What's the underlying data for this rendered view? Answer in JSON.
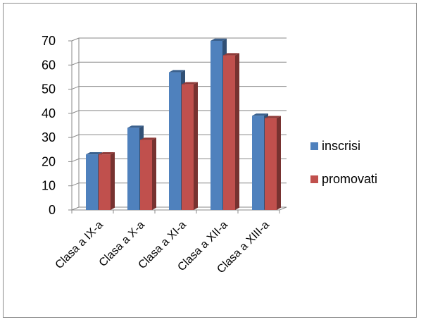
{
  "chart_data": {
    "type": "bar",
    "style": "3d-clustered-column",
    "categories": [
      "Clasa a IX-a",
      "Clasa a X-a",
      "Clasa a XI-a",
      "Clasa a XII-a",
      "Clasa a XIII-a"
    ],
    "series": [
      {
        "name": "inscrisi",
        "color": "#4f81bd",
        "values": [
          23,
          34,
          57,
          70,
          39
        ]
      },
      {
        "name": "promovati",
        "color": "#c0504d",
        "values": [
          23,
          29,
          52,
          64,
          38
        ]
      }
    ],
    "ylim": [
      0,
      70
    ],
    "yticks": [
      0,
      10,
      20,
      30,
      40,
      50,
      60,
      70
    ],
    "grid": true,
    "legend_position": "right"
  }
}
